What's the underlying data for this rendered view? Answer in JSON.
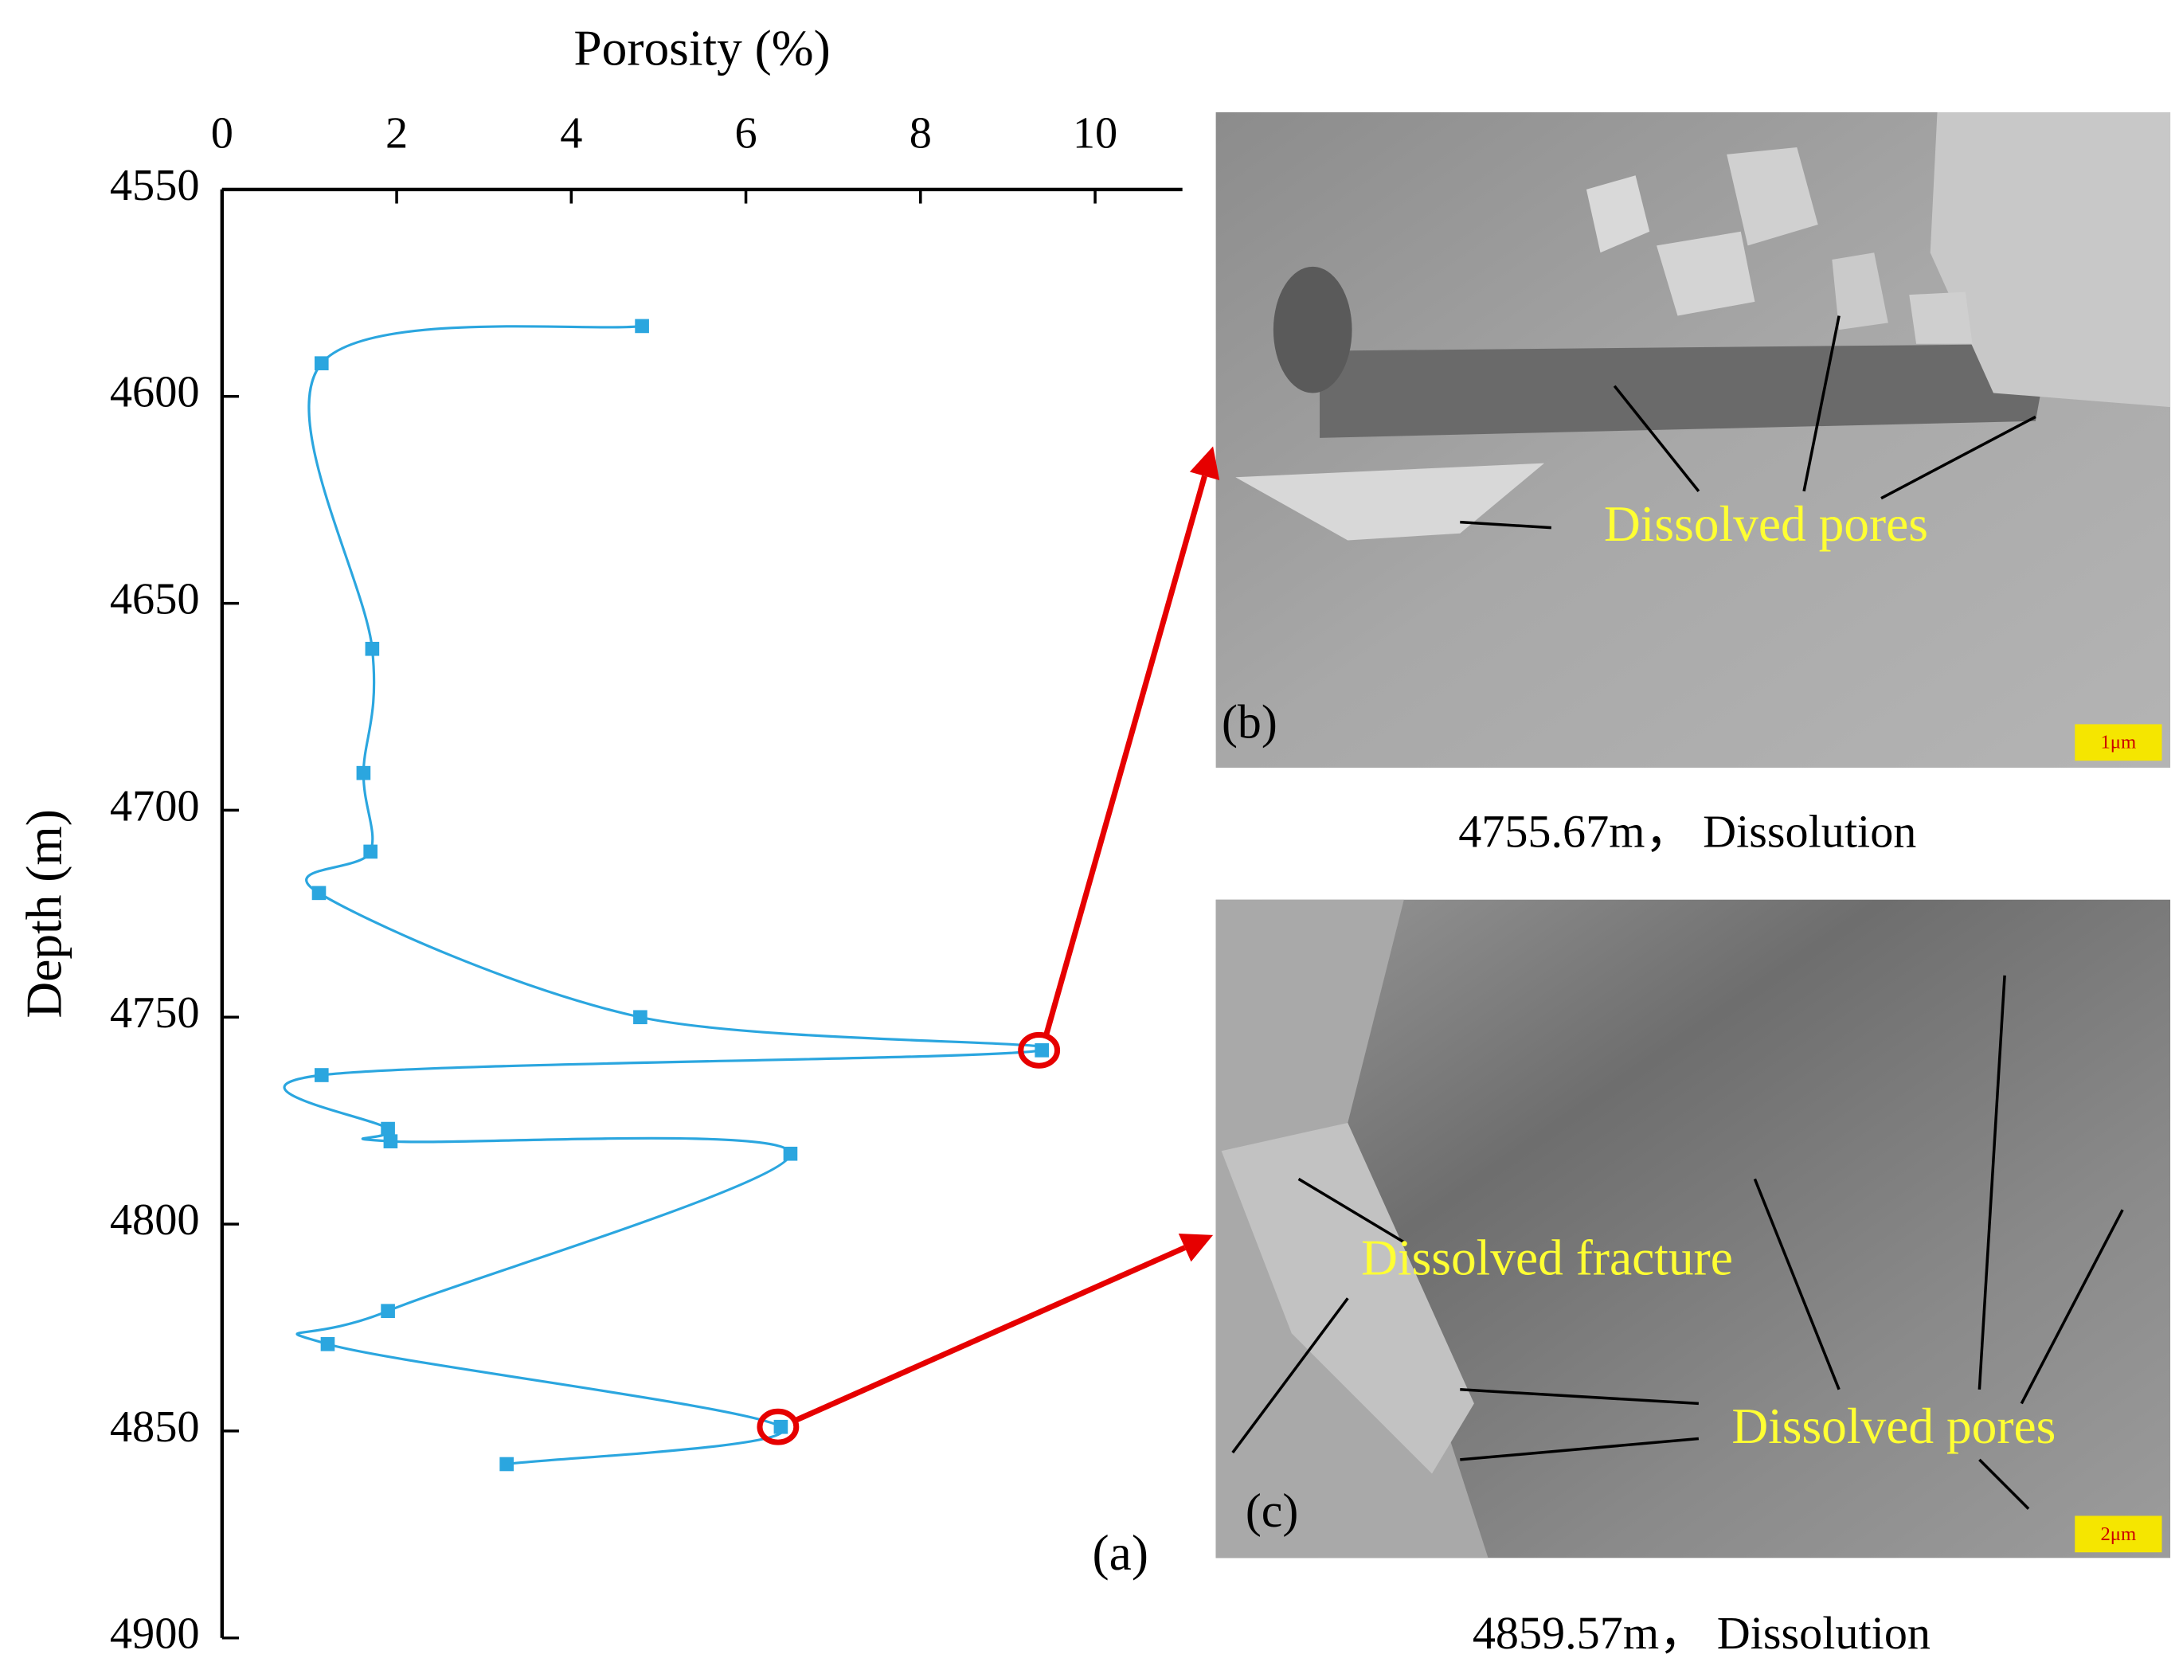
{
  "chart_data": {
    "type": "line",
    "x_label": "Porosity (%)",
    "y_label": "Depth (m)",
    "panel_label": "(a)",
    "x": [
      4.81,
      1.14,
      1.72,
      1.62,
      1.7,
      1.11,
      4.79,
      9.39,
      1.14,
      1.9,
      1.93,
      6.51,
      1.9,
      1.21,
      6.4,
      3.26
    ],
    "series": [
      {
        "color": "#2ba6df",
        "values": [
          4583,
          4592,
          4661,
          4691,
          4710,
          4720,
          4750,
          4758,
          4764,
          4777,
          4780,
          4783,
          4821,
          4829,
          4849,
          4858
        ]
      }
    ],
    "xlim": [
      0,
      11
    ],
    "xticks": [
      0,
      2,
      4,
      6,
      8,
      10
    ],
    "ylim": [
      4550,
      4900
    ],
    "yticks": [
      4550,
      4600,
      4650,
      4700,
      4750,
      4800,
      4850,
      4900
    ],
    "y_inverted": true,
    "x_axis_position": "top"
  },
  "panels": [
    {
      "label": "(b)",
      "scale": "1μm",
      "caption": "4755.67m， Dissolution",
      "annotations": [
        "Dissolved pores"
      ]
    },
    {
      "label": "(c)",
      "scale": "2μm",
      "caption": "4859.57m， Dissolution",
      "annotations": [
        "Dissolved fracture",
        "Dissolved pores"
      ]
    }
  ]
}
